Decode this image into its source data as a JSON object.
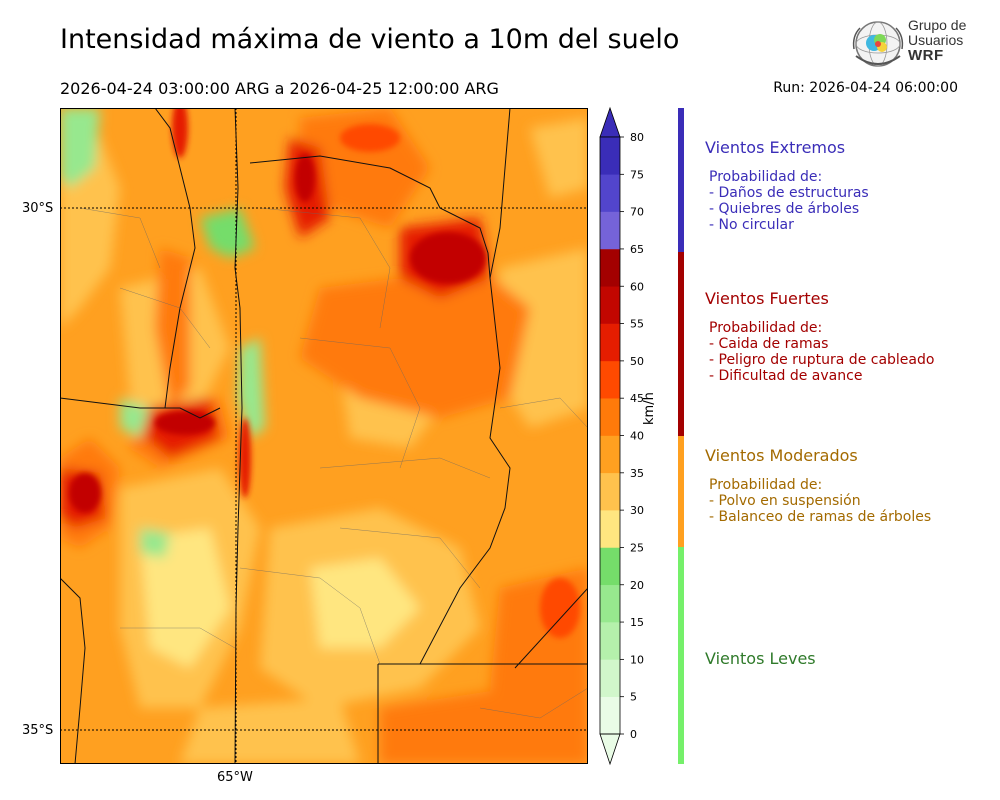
{
  "header": {
    "title": "Intensidad máxima de viento a 10m del suelo",
    "period": "2026-04-24 03:00:00 ARG  a  2026-04-25 12:00:00 ARG",
    "run": "Run: 2026-04-24 06:00:00"
  },
  "logo": {
    "line1": "Grupo de",
    "line2": "Usuarios",
    "line3": "WRF",
    "icon": "globe-wind-icon"
  },
  "map": {
    "lat_labels": [
      "30°S",
      "35°S"
    ],
    "lon_labels": [
      "65°W"
    ],
    "grid": true
  },
  "colorbar": {
    "unit": "km/h",
    "ticks": [
      "0",
      "5",
      "10",
      "15",
      "20",
      "25",
      "30",
      "35",
      "40",
      "45",
      "50",
      "55",
      "60",
      "65",
      "70",
      "75",
      "80"
    ],
    "colors": [
      "#e9fce6",
      "#d1f7cb",
      "#b5f0ab",
      "#97e88e",
      "#75dd6a",
      "#ffe680",
      "#ffc24d",
      "#ffa020",
      "#ff7a0a",
      "#ff4a00",
      "#e51d00",
      "#c20600",
      "#a30000",
      "#7563d9",
      "#5245cc",
      "#3a2db8"
    ],
    "extend": "both"
  },
  "categories": [
    {
      "name": "Vientos Extremos",
      "color": "#3a2db8",
      "desc": [
        "Probabilidad de:",
        "- Daños de estructuras",
        "- Quiebres de árboles",
        "- No circular"
      ]
    },
    {
      "name": "Vientos Fuertes",
      "color": "#a30000",
      "desc": [
        "Probabilidad de:",
        "- Caida de ramas",
        "- Peligro de ruptura de cableado",
        "- Dificultad de avance"
      ]
    },
    {
      "name": "Vientos Moderados",
      "color": "#a36a00",
      "desc": [
        "Probabilidad de:",
        "- Polvo en suspensión",
        "- Balanceo de ramas de árboles"
      ]
    },
    {
      "name": "Vientos Leves",
      "color": "#2f7a2a",
      "desc": []
    }
  ]
}
